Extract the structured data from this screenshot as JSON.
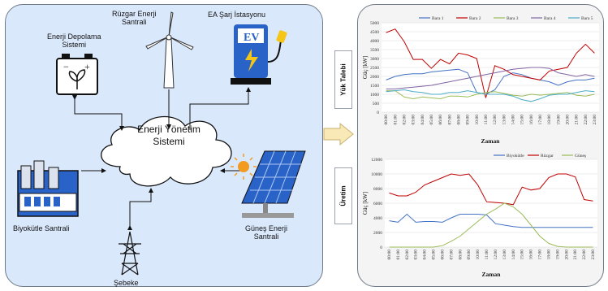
{
  "labels": {
    "storage": "Enerji Depolama\nSistemi",
    "wind": "Rüzgar Enerji\nSantrali",
    "ev": "EA Şarj İstasyonu",
    "ev_text": "EV",
    "ems": "Enerji Yönetim\nSistemi",
    "biomass": "Biyokütle Santrali",
    "grid": "Şebeke",
    "solar": "Güneş Enerji\nSantrali",
    "tab_load": "Yük Talebi",
    "tab_prod": "Üretim"
  },
  "colors": {
    "panel_bg": "#dae8fc",
    "bara1": "#4472c4",
    "bara2": "#c00000",
    "bara3": "#9bbb59",
    "bara4": "#8064a2",
    "bara5": "#4bacc6",
    "arrow": "#f8e9b6"
  },
  "chart_data": [
    {
      "type": "line",
      "ylabel": "Güç [kW]",
      "xlabel": "Zaman",
      "ylim": [
        0,
        5000
      ],
      "yticks": [
        0,
        500,
        1000,
        1500,
        2000,
        2500,
        3000,
        3500,
        4000,
        4500,
        5000
      ],
      "x": [
        "00:00",
        "01:00",
        "02:00",
        "03:00",
        "04:00",
        "05:00",
        "06:00",
        "07:00",
        "08:00",
        "09:00",
        "10:00",
        "11:00",
        "12:00",
        "13:00",
        "14:00",
        "15:00",
        "16:00",
        "17:00",
        "18:00",
        "19:00",
        "20:00",
        "21:00",
        "22:00",
        "23:00"
      ],
      "legend_position": "top",
      "series": [
        {
          "name": "Bara 1",
          "color": "#4472c4",
          "values": [
            1800,
            2000,
            2100,
            2150,
            2150,
            2250,
            2300,
            2350,
            2400,
            2200,
            1100,
            1000,
            1250,
            2000,
            2200,
            2100,
            1900,
            1800,
            1700,
            1500,
            1700,
            1800,
            1800,
            1900
          ]
        },
        {
          "name": "Bara 2",
          "color": "#c00000",
          "values": [
            4450,
            4650,
            3950,
            2950,
            2950,
            2450,
            2950,
            2700,
            3300,
            3200,
            3000,
            800,
            2600,
            2400,
            2100,
            2000,
            1900,
            1800,
            2300,
            2400,
            2500,
            3300,
            3800,
            3300
          ]
        },
        {
          "name": "Bara 3",
          "color": "#9bbb59",
          "values": [
            1200,
            1200,
            850,
            750,
            850,
            800,
            750,
            900,
            900,
            850,
            1000,
            1100,
            1150,
            1050,
            950,
            900,
            1000,
            950,
            1000,
            1050,
            1100,
            950,
            900,
            1000
          ]
        },
        {
          "name": "Bara 4",
          "color": "#8064a2",
          "values": [
            1300,
            1300,
            1350,
            1400,
            1450,
            1500,
            1600,
            1700,
            1800,
            1900,
            2000,
            2100,
            2200,
            2300,
            2400,
            2450,
            2500,
            2500,
            2450,
            2200,
            2100,
            2000,
            2100,
            2000
          ]
        },
        {
          "name": "Bara 5",
          "color": "#4bacc6",
          "values": [
            1150,
            1200,
            1250,
            1150,
            1100,
            1000,
            1000,
            1100,
            1100,
            1200,
            1100,
            1000,
            1000,
            1000,
            900,
            700,
            600,
            750,
            950,
            1000,
            1000,
            1100,
            1200,
            1150
          ]
        }
      ]
    },
    {
      "type": "line",
      "ylabel": "Güç [kW]",
      "xlabel": "Zaman",
      "ylim": [
        0,
        12000
      ],
      "yticks": [
        0,
        2000,
        4000,
        6000,
        8000,
        10000,
        12000
      ],
      "x": [
        "00:00",
        "01:00",
        "02:00",
        "03:00",
        "04:00",
        "05:00",
        "06:00",
        "07:00",
        "08:00",
        "09:00",
        "10:00",
        "11:00",
        "12:00",
        "13:00",
        "14:00",
        "15:00",
        "16:00",
        "17:00",
        "18:00",
        "19:00",
        "20:00",
        "21:00",
        "22:00",
        "23:00"
      ],
      "legend_position": "top",
      "series": [
        {
          "name": "Biyokütle",
          "color": "#4472c4",
          "values": [
            3600,
            3400,
            4500,
            3400,
            3500,
            3500,
            3400,
            4000,
            4500,
            4500,
            4500,
            4400,
            3200,
            3000,
            2800,
            2700,
            2700,
            2700,
            2700,
            2700,
            2700,
            2700,
            2700,
            2700
          ]
        },
        {
          "name": "Rüzgar",
          "color": "#c00000",
          "values": [
            7400,
            7000,
            7000,
            7500,
            8500,
            9000,
            9500,
            10000,
            9800,
            10000,
            8500,
            6200,
            6100,
            6000,
            5800,
            8200,
            7800,
            8000,
            9500,
            10000,
            10000,
            9600,
            6500,
            6300
          ]
        },
        {
          "name": "Güneş",
          "color": "#9bbb59",
          "values": [
            0,
            0,
            0,
            0,
            0,
            0,
            200,
            800,
            1500,
            2500,
            3500,
            4500,
            5200,
            6000,
            5500,
            4500,
            3000,
            1500,
            500,
            100,
            0,
            0,
            0,
            0
          ]
        }
      ]
    }
  ]
}
